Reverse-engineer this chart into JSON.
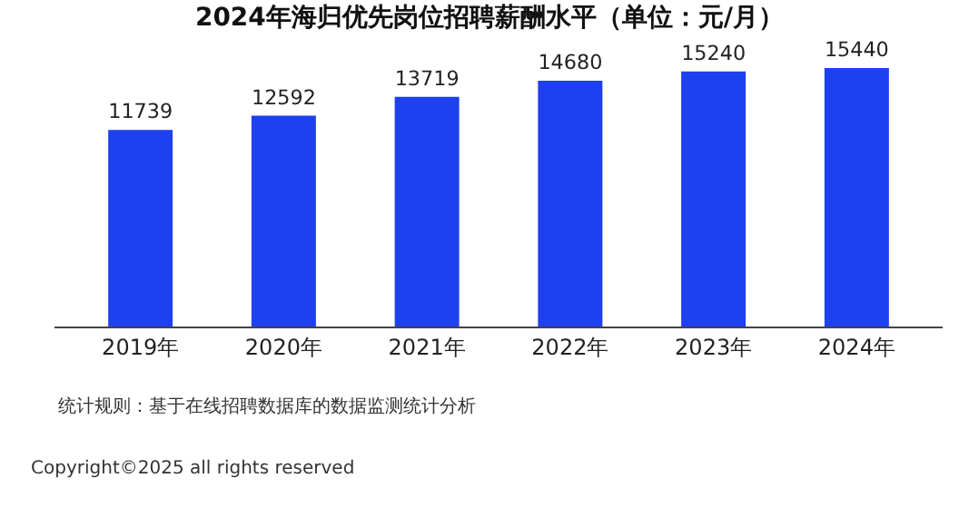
{
  "chart_data": {
    "type": "bar",
    "title": "2024年海归优先岗位招聘薪酬水平（单位：元/月）",
    "categories": [
      "2019年",
      "2020年",
      "2021年",
      "2022年",
      "2023年",
      "2024年"
    ],
    "values": [
      11739,
      12592,
      13719,
      14680,
      15240,
      15440
    ],
    "color": "#1f40f0",
    "data_labels": true,
    "annotations": [
      "统计规则：基于在线招聘数据库的数据监测统计分析",
      "Copyright©2025 all rights reserved"
    ]
  }
}
